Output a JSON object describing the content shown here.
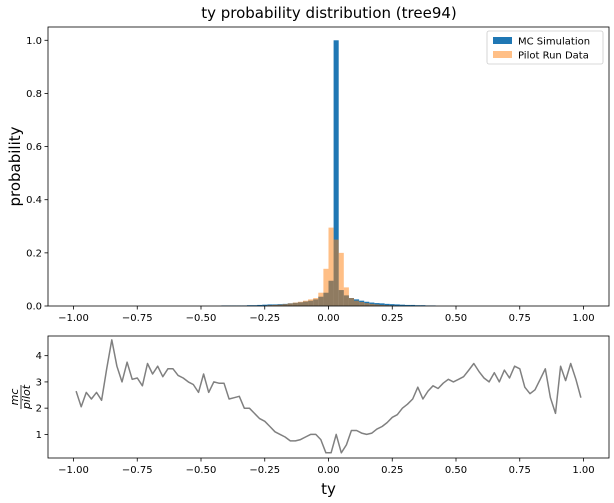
{
  "chart_data": [
    {
      "type": "bar",
      "title": "ty probability distribution (tree94)",
      "xlabel": "",
      "ylabel": "probability",
      "xlim": [
        -1.1,
        1.1
      ],
      "ylim": [
        0,
        1.05
      ],
      "xticks": [
        -1.0,
        -0.75,
        -0.5,
        -0.25,
        0.0,
        0.25,
        0.5,
        0.75,
        1.0
      ],
      "xtick_labels": [
        "−1.00",
        "−0.75",
        "−0.50",
        "−0.25",
        "0.00",
        "0.25",
        "0.50",
        "0.75",
        "1.00"
      ],
      "yticks": [
        0.0,
        0.2,
        0.4,
        0.6,
        0.8,
        1.0
      ],
      "ytick_labels": [
        "0.0",
        "0.2",
        "0.4",
        "0.6",
        "0.8",
        "1.0"
      ],
      "legend_position": "top-right",
      "bin_width": 0.02,
      "series": [
        {
          "name": "MC Simulation",
          "color": "#1f77b4",
          "bins": [
            [
              -0.42,
              0.002
            ],
            [
              -0.4,
              0.002
            ],
            [
              -0.38,
              0.002
            ],
            [
              -0.36,
              0.002
            ],
            [
              -0.34,
              0.002
            ],
            [
              -0.32,
              0.003
            ],
            [
              -0.3,
              0.003
            ],
            [
              -0.28,
              0.004
            ],
            [
              -0.26,
              0.005
            ],
            [
              -0.24,
              0.006
            ],
            [
              -0.22,
              0.006
            ],
            [
              -0.2,
              0.007
            ],
            [
              -0.18,
              0.008
            ],
            [
              -0.16,
              0.01
            ],
            [
              -0.14,
              0.012
            ],
            [
              -0.12,
              0.014
            ],
            [
              -0.1,
              0.017
            ],
            [
              -0.08,
              0.02
            ],
            [
              -0.06,
              0.025
            ],
            [
              -0.04,
              0.035
            ],
            [
              -0.02,
              0.05
            ],
            [
              0.0,
              0.095
            ],
            [
              0.02,
              1.0
            ],
            [
              0.04,
              0.06
            ],
            [
              0.06,
              0.04
            ],
            [
              0.08,
              0.03
            ],
            [
              0.1,
              0.025
            ],
            [
              0.12,
              0.02
            ],
            [
              0.14,
              0.016
            ],
            [
              0.16,
              0.013
            ],
            [
              0.18,
              0.011
            ],
            [
              0.2,
              0.01
            ],
            [
              0.22,
              0.008
            ],
            [
              0.24,
              0.007
            ],
            [
              0.26,
              0.006
            ],
            [
              0.28,
              0.005
            ],
            [
              0.3,
              0.004
            ],
            [
              0.32,
              0.004
            ],
            [
              0.34,
              0.003
            ],
            [
              0.36,
              0.003
            ],
            [
              0.38,
              0.002
            ],
            [
              0.4,
              0.002
            ]
          ]
        },
        {
          "name": "Pilot Run Data",
          "color": "#ff7f0e",
          "bins": [
            [
              -0.24,
              0.003
            ],
            [
              -0.22,
              0.004
            ],
            [
              -0.2,
              0.005
            ],
            [
              -0.18,
              0.007
            ],
            [
              -0.16,
              0.01
            ],
            [
              -0.14,
              0.013
            ],
            [
              -0.12,
              0.016
            ],
            [
              -0.1,
              0.02
            ],
            [
              -0.08,
              0.025
            ],
            [
              -0.06,
              0.03
            ],
            [
              -0.04,
              0.05
            ],
            [
              -0.02,
              0.14
            ],
            [
              0.0,
              0.295
            ],
            [
              0.02,
              0.25
            ],
            [
              0.04,
              0.2
            ],
            [
              0.06,
              0.07
            ],
            [
              0.08,
              0.03
            ],
            [
              0.1,
              0.02
            ],
            [
              0.12,
              0.015
            ],
            [
              0.14,
              0.011
            ],
            [
              0.16,
              0.008
            ],
            [
              0.18,
              0.006
            ],
            [
              0.2,
              0.004
            ],
            [
              0.22,
              0.003
            ],
            [
              0.24,
              0.002
            ]
          ]
        }
      ]
    },
    {
      "type": "line",
      "xlabel": "ty",
      "ylabel": "mc/pilot",
      "ylabel_numerator": "mc",
      "ylabel_denominator": "pilot",
      "xlim": [
        -1.1,
        1.1
      ],
      "ylim": [
        0.1,
        4.75
      ],
      "xticks": [
        -1.0,
        -0.75,
        -0.5,
        -0.25,
        0.0,
        0.25,
        0.5,
        0.75,
        1.0
      ],
      "xtick_labels": [
        "−1.00",
        "−0.75",
        "−0.50",
        "−0.25",
        "0.00",
        "0.25",
        "0.50",
        "0.75",
        "1.00"
      ],
      "yticks": [
        1,
        2,
        3,
        4
      ],
      "ytick_labels": [
        "1",
        "2",
        "3",
        "4"
      ],
      "series": [
        {
          "color": "#808080",
          "x": [
            -0.99,
            -0.97,
            -0.95,
            -0.93,
            -0.91,
            -0.89,
            -0.87,
            -0.85,
            -0.83,
            -0.81,
            -0.79,
            -0.77,
            -0.75,
            -0.73,
            -0.71,
            -0.69,
            -0.67,
            -0.65,
            -0.63,
            -0.61,
            -0.59,
            -0.57,
            -0.55,
            -0.53,
            -0.51,
            -0.49,
            -0.47,
            -0.45,
            -0.43,
            -0.41,
            -0.39,
            -0.37,
            -0.35,
            -0.33,
            -0.31,
            -0.29,
            -0.27,
            -0.25,
            -0.23,
            -0.21,
            -0.19,
            -0.17,
            -0.15,
            -0.13,
            -0.11,
            -0.09,
            -0.07,
            -0.05,
            -0.03,
            -0.01,
            0.01,
            0.03,
            0.05,
            0.07,
            0.09,
            0.11,
            0.13,
            0.15,
            0.17,
            0.19,
            0.21,
            0.23,
            0.25,
            0.27,
            0.29,
            0.31,
            0.33,
            0.35,
            0.37,
            0.39,
            0.41,
            0.43,
            0.45,
            0.47,
            0.49,
            0.51,
            0.53,
            0.55,
            0.57,
            0.59,
            0.61,
            0.63,
            0.65,
            0.67,
            0.69,
            0.71,
            0.73,
            0.75,
            0.77,
            0.79,
            0.81,
            0.83,
            0.85,
            0.87,
            0.89,
            0.91,
            0.93,
            0.95,
            0.97,
            0.99
          ],
          "y": [
            2.65,
            2.05,
            2.6,
            2.35,
            2.6,
            2.3,
            3.5,
            4.6,
            3.6,
            3.0,
            3.75,
            3.1,
            3.15,
            2.85,
            3.7,
            3.3,
            3.6,
            3.2,
            3.5,
            3.5,
            3.25,
            3.15,
            3.0,
            2.9,
            2.6,
            3.3,
            2.6,
            3.0,
            2.95,
            2.95,
            2.35,
            2.4,
            2.45,
            2.0,
            2.0,
            1.8,
            1.6,
            1.5,
            1.3,
            1.1,
            1.0,
            0.9,
            0.75,
            0.75,
            0.8,
            0.9,
            1.0,
            1.0,
            0.8,
            0.3,
            0.3,
            1.0,
            0.3,
            0.6,
            1.15,
            1.15,
            1.05,
            1.0,
            1.05,
            1.2,
            1.3,
            1.45,
            1.65,
            1.75,
            2.0,
            2.15,
            2.35,
            2.8,
            2.35,
            2.65,
            2.85,
            2.75,
            2.95,
            3.1,
            3.0,
            3.1,
            3.2,
            3.45,
            3.7,
            3.4,
            3.15,
            3.0,
            3.35,
            3.0,
            3.45,
            3.15,
            3.6,
            3.5,
            2.8,
            2.55,
            2.7,
            3.1,
            3.5,
            2.4,
            1.8,
            3.6,
            3.05,
            3.7,
            3.1,
            2.4
          ]
        }
      ]
    }
  ]
}
